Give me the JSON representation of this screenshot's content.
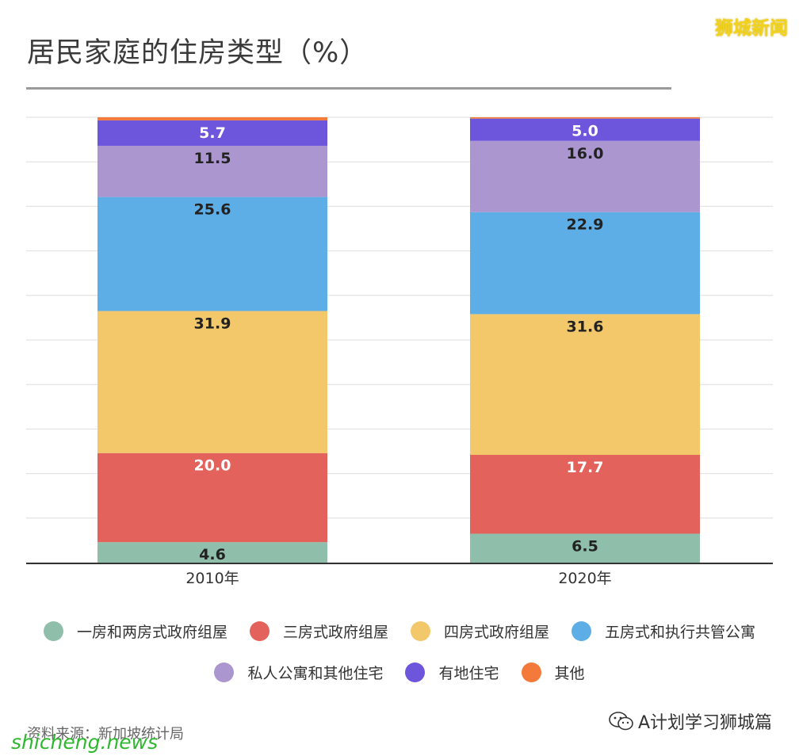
{
  "header": {
    "title": "居民家庭的住房类型（%）",
    "brand_top": "狮城新闻"
  },
  "footer": {
    "source": "资料来源：新加坡统计局",
    "brand_bottom": "shicheng.news",
    "wechat_account": "A计划学习狮城篇"
  },
  "chart_data": {
    "type": "bar",
    "stacked": true,
    "title": "居民家庭的住房类型（%）",
    "categories": [
      "2010年",
      "2020年"
    ],
    "ylim": [
      0,
      100
    ],
    "grid": true,
    "legend_position": "bottom",
    "series": [
      {
        "name": "一房和两房式政府组屋",
        "color": "#8fbfaa",
        "label_color": "#222222",
        "values": [
          4.6,
          6.5
        ]
      },
      {
        "name": "三房式政府组屋",
        "color": "#e3625b",
        "label_color": "#ffffff",
        "values": [
          20.0,
          17.7
        ]
      },
      {
        "name": "四房式政府组屋",
        "color": "#f2c86a",
        "label_color": "#222222",
        "values": [
          31.9,
          31.6
        ]
      },
      {
        "name": "五房式和执行共管公寓",
        "color": "#5dade6",
        "label_color": "#222222",
        "values": [
          25.6,
          22.9
        ]
      },
      {
        "name": "私人公寓和其他住宅",
        "color": "#ab96cf",
        "label_color": "#222222",
        "values": [
          11.5,
          16.0
        ]
      },
      {
        "name": "有地住宅",
        "color": "#6d55dc",
        "label_color": "#ffffff",
        "values": [
          5.7,
          5.0
        ]
      },
      {
        "name": "其他",
        "color": "#f47a3c",
        "label_color": "#222222",
        "values": [
          0.7,
          0.3
        ]
      }
    ],
    "data_labels": [
      [
        "4.6",
        "6.5"
      ],
      [
        "20.0",
        "17.7"
      ],
      [
        "31.9",
        "31.6"
      ],
      [
        "25.6",
        "22.9"
      ],
      [
        "11.5",
        "16.0"
      ],
      [
        "5.7",
        "5.0"
      ],
      [
        "",
        ""
      ]
    ]
  }
}
